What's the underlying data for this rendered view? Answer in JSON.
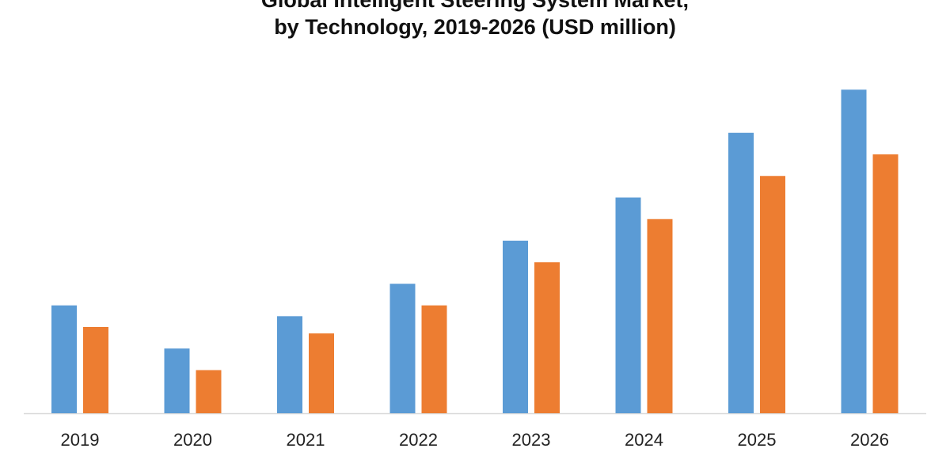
{
  "chart_data": {
    "type": "bar",
    "title_lines": [
      "Global Intelligent Steering System Market,",
      "by Technology,  2019-2026 (USD million)"
    ],
    "categories": [
      "2019",
      "2020",
      "2021",
      "2022",
      "2023",
      "2024",
      "2025",
      "2026"
    ],
    "series": [
      {
        "color": "#5b9bd5",
        "values": [
          5.0,
          3.0,
          4.5,
          6.0,
          8.0,
          10.0,
          13.0,
          15.0
        ]
      },
      {
        "color": "#ed7d31",
        "values": [
          4.0,
          2.0,
          3.7,
          5.0,
          7.0,
          9.0,
          11.0,
          12.0
        ]
      }
    ],
    "ylim": [
      0,
      16
    ],
    "grid": false,
    "axis_line_color": "#d9d9d9"
  }
}
